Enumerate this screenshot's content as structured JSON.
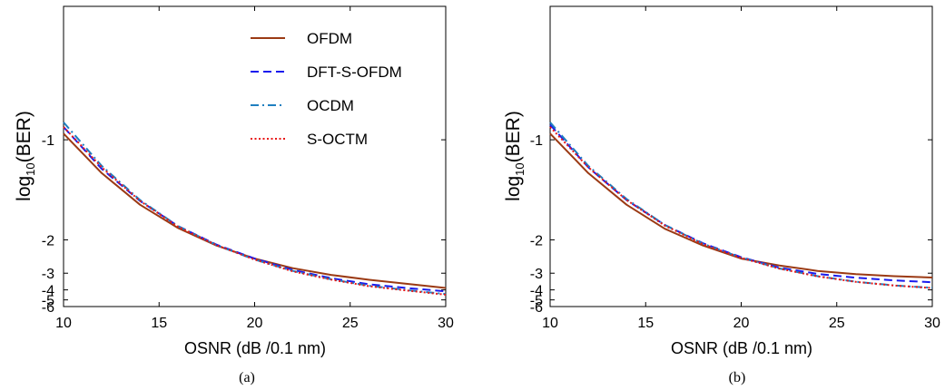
{
  "chart_data": [
    {
      "type": "line",
      "caption": "(a)",
      "xlabel": "OSNR (dB /0.1 nm)",
      "ylabel": {
        "base": "log",
        "sub": "10",
        "rest": "(BER)"
      },
      "xlim": [
        10,
        30
      ],
      "xticks": [
        10,
        15,
        20,
        25,
        30
      ],
      "yticks": [
        -1,
        -2,
        -3,
        -4,
        -5,
        -6
      ],
      "ylim_top": -0.6,
      "ylim_bottom": -6,
      "y_scale": "log-compressed",
      "legend": {
        "position": "top-right"
      },
      "x": [
        10,
        12,
        14,
        16,
        18,
        20,
        22,
        24,
        26,
        28,
        30
      ],
      "series": [
        {
          "name": "OFDM",
          "color": "#9b3a14",
          "dash": "solid",
          "values": [
            -0.97,
            -1.2,
            -1.48,
            -1.79,
            -2.12,
            -2.46,
            -2.79,
            -3.08,
            -3.33,
            -3.57,
            -3.85
          ]
        },
        {
          "name": "DFT-S-OFDM",
          "color": "#1a1aee",
          "dash": "dashed",
          "values": [
            -0.94,
            -1.17,
            -1.44,
            -1.76,
            -2.1,
            -2.46,
            -2.86,
            -3.24,
            -3.6,
            -3.86,
            -4.12
          ]
        },
        {
          "name": "OCDM",
          "color": "#1f7fc0",
          "dash": "dashdot",
          "values": [
            -0.92,
            -1.15,
            -1.43,
            -1.76,
            -2.11,
            -2.49,
            -2.9,
            -3.3,
            -3.7,
            -4.02,
            -4.36
          ]
        },
        {
          "name": "S-OCTM",
          "color": "#e81818",
          "dash": "dotted",
          "values": [
            -0.94,
            -1.16,
            -1.44,
            -1.77,
            -2.11,
            -2.49,
            -2.92,
            -3.32,
            -3.73,
            -4.06,
            -4.42
          ]
        }
      ]
    },
    {
      "type": "line",
      "caption": "(b)",
      "xlabel": "OSNR (dB /0.1 nm)",
      "ylabel": {
        "base": "log",
        "sub": "10",
        "rest": "(BER)"
      },
      "xlim": [
        10,
        30
      ],
      "xticks": [
        10,
        15,
        20,
        25,
        30
      ],
      "yticks": [
        -1,
        -2,
        -3,
        -4,
        -5,
        -6
      ],
      "ylim_top": -0.6,
      "ylim_bottom": -6,
      "y_scale": "log-compressed",
      "x": [
        10,
        12,
        14,
        16,
        18,
        20,
        22,
        24,
        26,
        28,
        30
      ],
      "series": [
        {
          "name": "OFDM",
          "color": "#9b3a14",
          "dash": "solid",
          "values": [
            -0.97,
            -1.2,
            -1.48,
            -1.8,
            -2.12,
            -2.46,
            -2.69,
            -2.9,
            -3.04,
            -3.14,
            -3.21
          ]
        },
        {
          "name": "DFT-S-OFDM",
          "color": "#1a1aee",
          "dash": "dashed",
          "values": [
            -0.93,
            -1.16,
            -1.43,
            -1.74,
            -2.07,
            -2.42,
            -2.77,
            -3.03,
            -3.22,
            -3.36,
            -3.47
          ]
        },
        {
          "name": "OCDM",
          "color": "#1f7fc0",
          "dash": "dashdot",
          "values": [
            -0.92,
            -1.15,
            -1.42,
            -1.74,
            -2.08,
            -2.43,
            -2.8,
            -3.14,
            -3.44,
            -3.67,
            -3.84
          ]
        },
        {
          "name": "S-OCTM",
          "color": "#e81818",
          "dash": "dotted",
          "values": [
            -0.94,
            -1.16,
            -1.43,
            -1.75,
            -2.09,
            -2.44,
            -2.81,
            -3.15,
            -3.45,
            -3.68,
            -3.86
          ]
        }
      ]
    }
  ]
}
